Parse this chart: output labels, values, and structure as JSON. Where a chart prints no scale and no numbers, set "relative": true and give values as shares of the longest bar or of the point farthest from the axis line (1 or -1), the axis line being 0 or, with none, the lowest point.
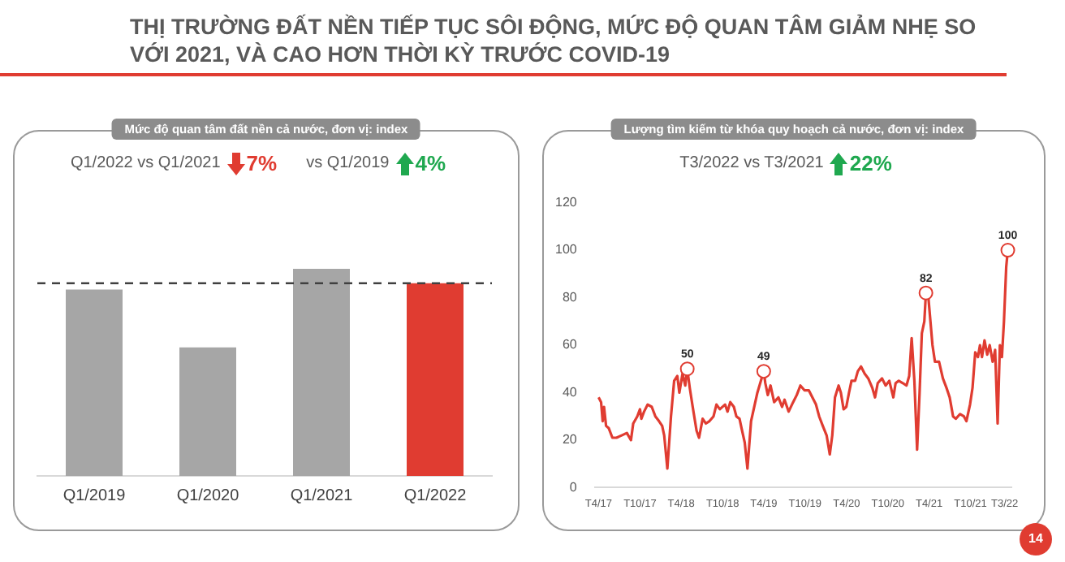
{
  "chart_data": [
    {
      "type": "bar",
      "subtitle": "THỊ TRƯỜNG ĐẤT NỀN TIẾP TỤC SÔI ĐỘNG, MỨC ĐỘ QUAN TÂM GIẢM NHẸ SO VỚI 2021, VÀ CAO HƠN THỜI KỲ TRƯỚC COVID-19",
      "title": "Mức độ quan tâm đất nền cả nước, đơn vị: index",
      "categories": [
        "Q1/2019",
        "Q1/2020",
        "Q1/2021",
        "Q1/2022"
      ],
      "values": [
        0.9,
        0.62,
        1,
        0.93
      ],
      "colors": [
        "#a6a6a6",
        "#a6a6a6",
        "#a6a6a6",
        "#e03c31"
      ],
      "relative": true,
      "ref_lines": [
        {
          "axis": "y",
          "value": 0.93,
          "color": "#404040",
          "line_style": "dashed"
        }
      ],
      "annotations": [
        "Q1/2022 vs Q1/2021",
        "7%",
        "vs Q1/2019",
        "4%"
      ],
      "grid": false,
      "legend": false
    },
    {
      "type": "line",
      "title": "Lượng tìm kiếm từ khóa quy hoạch cả nước, đơn vị: index",
      "x": [
        "2017-04-01",
        "2017-04-12",
        "2017-04-19",
        "2017-04-25",
        "2017-05-04",
        "2017-05-16",
        "2017-06-01",
        "2017-06-19",
        "2017-07-12",
        "2017-08-04",
        "2017-08-22",
        "2017-09-01",
        "2017-09-19",
        "2017-10-01",
        "2017-10-07",
        "2017-10-19",
        "2017-11-04",
        "2017-11-22",
        "2017-12-08",
        "2017-12-24",
        "2018-01-07",
        "2018-01-16",
        "2018-01-30",
        "2018-02-15",
        "2018-03-01",
        "2018-03-15",
        "2018-03-24",
        "2018-04-07",
        "2018-04-19",
        "2018-04-28",
        "2018-05-09",
        "2018-05-22",
        "2018-06-08",
        "2018-06-19",
        "2018-07-05",
        "2018-07-19",
        "2018-08-04",
        "2018-08-22",
        "2018-09-04",
        "2018-09-19",
        "2018-10-12",
        "2018-10-23",
        "2018-11-04",
        "2018-11-20",
        "2018-12-01",
        "2018-12-15",
        "2018-12-24",
        "2019-01-07",
        "2019-01-19",
        "2019-02-04",
        "2019-03-04",
        "2019-04-01",
        "2019-04-08",
        "2019-04-19",
        "2019-05-01",
        "2019-05-17",
        "2019-06-05",
        "2019-06-21",
        "2019-07-02",
        "2019-07-20",
        "2019-08-09",
        "2019-08-25",
        "2019-09-10",
        "2019-09-28",
        "2019-10-17",
        "2019-11-02",
        "2019-11-18",
        "2019-12-02",
        "2019-12-18",
        "2020-01-04",
        "2020-01-18",
        "2020-01-29",
        "2020-02-10",
        "2020-02-26",
        "2020-03-07",
        "2020-03-19",
        "2020-03-31",
        "2020-04-12",
        "2020-04-23",
        "2020-05-09",
        "2020-05-21",
        "2020-06-04",
        "2020-06-20",
        "2020-07-06",
        "2020-07-24",
        "2020-08-05",
        "2020-08-17",
        "2020-09-05",
        "2020-09-21",
        "2020-10-07",
        "2020-10-25",
        "2020-11-04",
        "2020-11-18",
        "2020-12-06",
        "2020-12-22",
        "2021-01-03",
        "2021-01-14",
        "2021-01-26",
        "2021-02-07",
        "2021-02-18",
        "2021-02-28",
        "2021-03-11",
        "2021-03-18",
        "2021-03-29",
        "2021-04-16",
        "2021-04-27",
        "2021-05-15",
        "2021-06-01",
        "2021-06-17",
        "2021-07-01",
        "2021-07-16",
        "2021-07-28",
        "2021-08-16",
        "2021-09-02",
        "2021-09-13",
        "2021-09-29",
        "2021-10-10",
        "2021-10-22",
        "2021-11-03",
        "2021-11-12",
        "2021-11-21",
        "2021-12-02",
        "2021-12-14",
        "2021-12-25",
        "2022-01-07",
        "2022-01-18",
        "2022-01-29",
        "2022-02-08",
        "2022-02-17",
        "2022-02-26",
        "2022-03-08",
        "2022-03-15"
      ],
      "series": [
        {
          "color": "#e03c31",
          "values": [
            38,
            36,
            28,
            34,
            26,
            25,
            21,
            21,
            22,
            23,
            20,
            27,
            30,
            33,
            29,
            32,
            35,
            34,
            30,
            28,
            26,
            22,
            8,
            30,
            45,
            47,
            40,
            48,
            43,
            50,
            42,
            34,
            24,
            21,
            29,
            27,
            28,
            30,
            35,
            33,
            35,
            32,
            36,
            34,
            30,
            29,
            25,
            19,
            8,
            28,
            40,
            49,
            44,
            39,
            43,
            36,
            38,
            34,
            37,
            32,
            36,
            39,
            43,
            41,
            41,
            38,
            35,
            30,
            26,
            22,
            14,
            22,
            38,
            43,
            40,
            33,
            34,
            40,
            45,
            45,
            49,
            51,
            48,
            46,
            42,
            38,
            44,
            46,
            43,
            45,
            38,
            44,
            45,
            44,
            43,
            47,
            63,
            45,
            16,
            40,
            65,
            70,
            82,
            80,
            60,
            53,
            53,
            46,
            42,
            38,
            30,
            29,
            31,
            30,
            28,
            35,
            42,
            57,
            55,
            60,
            55,
            62,
            56,
            60,
            53,
            58,
            27,
            60,
            55,
            70,
            93,
            100
          ]
        }
      ],
      "xlim": [
        "2017-03-15",
        "2022-03-31"
      ],
      "xticks": [
        {
          "value": "2017-04",
          "label": "T4/17"
        },
        {
          "value": "2017-10",
          "label": "T10/17"
        },
        {
          "value": "2018-04",
          "label": "T4/18"
        },
        {
          "value": "2018-10",
          "label": "T10/18"
        },
        {
          "value": "2019-04",
          "label": "T4/19"
        },
        {
          "value": "2019-10",
          "label": "T10/19"
        },
        {
          "value": "2020-04",
          "label": "T4/20"
        },
        {
          "value": "2020-10",
          "label": "T10/20"
        },
        {
          "value": "2021-04",
          "label": "T4/21"
        },
        {
          "value": "2021-10",
          "label": "T10/21"
        },
        {
          "value": "2022-03",
          "label": "T3/22"
        }
      ],
      "ylim": [
        0,
        120
      ],
      "yticks": [
        0,
        20,
        40,
        60,
        80,
        100,
        120
      ],
      "annotations": [
        "T3/2022 vs T3/2021",
        "22%",
        {
          "text": "50",
          "x": "2018-04-28",
          "y": 50
        },
        {
          "text": "49",
          "x": "2019-04-01",
          "y": 49
        },
        {
          "text": "82",
          "x": "2021-03-18",
          "y": 82
        },
        {
          "text": "100",
          "x": "2022-03-15",
          "y": 100
        },
        "14"
      ],
      "marker": "none",
      "line_style": "solid",
      "grid": false,
      "legend": false
    }
  ]
}
